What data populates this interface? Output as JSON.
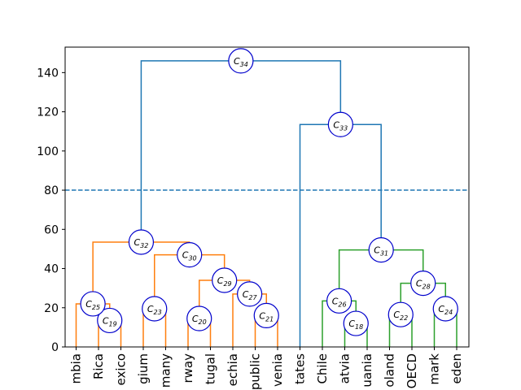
{
  "chart_data": {
    "type": "dendrogram",
    "ylim": [
      0,
      153
    ],
    "yticks": [
      0,
      20,
      40,
      60,
      80,
      100,
      120,
      140
    ],
    "threshold": {
      "y": 80,
      "color": "#1f77b4",
      "style": "dashed"
    },
    "leaves": [
      "mbia",
      "Rica",
      "exico",
      "gium",
      "many",
      "rway",
      "tugal",
      "echia",
      "public",
      "venia",
      "tates",
      "Chile",
      "atvia",
      "uania",
      "oland",
      "OECD",
      "mark",
      "eden"
    ],
    "colors": {
      "top": "#1f77b4",
      "cluster1": "#ff7f0e",
      "cluster2": "#2ca02c",
      "node_stroke": "#0000cc"
    },
    "merges": [
      {
        "id": "C18",
        "left": 12,
        "right": 13,
        "height": 12,
        "color": "cluster2"
      },
      {
        "id": "C19",
        "left": 1,
        "right": 2,
        "height": 13.5,
        "color": "cluster1"
      },
      {
        "id": "C20",
        "left": 5,
        "right": 6,
        "height": 14.5,
        "color": "cluster1"
      },
      {
        "id": "C21",
        "left": 8,
        "right": 9,
        "height": 16,
        "color": "cluster1"
      },
      {
        "id": "C22",
        "left": 14,
        "right": 15,
        "height": 16.5,
        "color": "cluster2"
      },
      {
        "id": "C23",
        "left": 3,
        "right": 4,
        "height": 19.5,
        "color": "cluster1"
      },
      {
        "id": "C24",
        "left": 16,
        "right": 17,
        "height": 19.5,
        "color": "cluster2"
      },
      {
        "id": "C25",
        "left": 0,
        "right": "C19",
        "height": 22,
        "color": "cluster1"
      },
      {
        "id": "C26",
        "left": 11,
        "right": "C18",
        "height": 23.5,
        "color": "cluster2"
      },
      {
        "id": "C27",
        "left": 7,
        "right": "C21",
        "height": 27,
        "color": "cluster1"
      },
      {
        "id": "C28",
        "left": "C22",
        "right": "C24",
        "height": 32.5,
        "color": "cluster2"
      },
      {
        "id": "C29",
        "left": "C20",
        "right": "C27",
        "height": 34,
        "color": "cluster1"
      },
      {
        "id": "C30",
        "left": "C23",
        "right": "C29",
        "height": 47,
        "color": "cluster1"
      },
      {
        "id": "C31",
        "left": "C26",
        "right": "C28",
        "height": 49.5,
        "color": "cluster2"
      },
      {
        "id": "C32",
        "left": "C25",
        "right": "C30",
        "height": 53.5,
        "color": "cluster1"
      },
      {
        "id": "C33",
        "left": 10,
        "right": "C31",
        "height": 113.5,
        "color": "top"
      },
      {
        "id": "C34",
        "left": "C32",
        "right": "C33",
        "height": 146,
        "color": "top"
      }
    ]
  }
}
